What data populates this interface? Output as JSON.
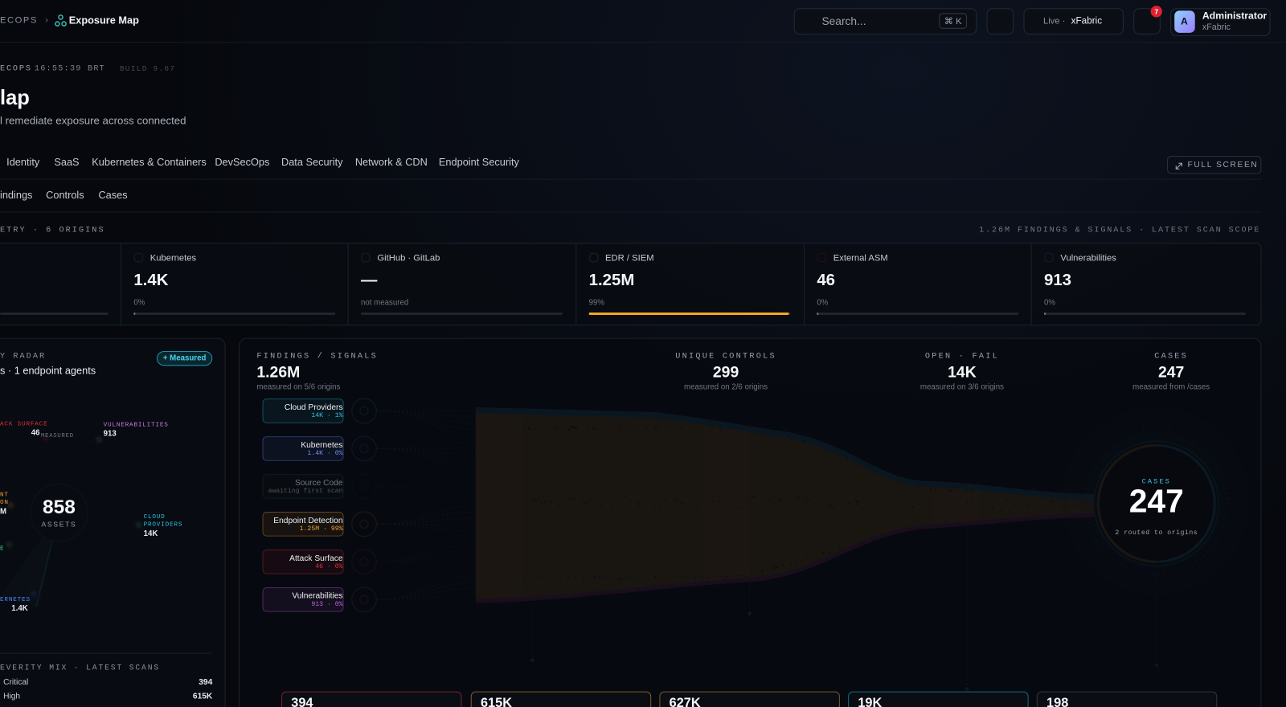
{
  "header": {
    "breadcrumb": "ECOPS",
    "page": "Exposure Map",
    "search": "Search...",
    "shortcut": "⌘ K",
    "live": "Live ·",
    "workspace": "xFabric",
    "notifications": "7",
    "avatar": "A",
    "user": "Administrator",
    "org": "xFabric"
  },
  "meta": {
    "org": "ECOPS",
    "time": "16:55:39 BRT",
    "build": "BUILD 9.67"
  },
  "title": "lap",
  "subtitle": "l remediate exposure across connected",
  "tabs": [
    "Identity",
    "SaaS",
    "Kubernetes & Containers",
    "DevSecOps",
    "Data Security",
    "Network & CDN",
    "Endpoint Security"
  ],
  "fullscreen": "FULL SCREEN",
  "subtabs": [
    "indings",
    "Controls",
    "Cases"
  ],
  "telemetry": {
    "label": "ETRY · 6 ORIGINS",
    "scope": "1.26M FINDINGS & SIGNALS · LATEST SCAN SCOPE",
    "cards": [
      {
        "name": "Kubernetes",
        "value": "1.4K",
        "note": "0%"
      },
      {
        "name": "GitHub · GitLab",
        "value": "—",
        "note": "not measured"
      },
      {
        "name": "EDR / SIEM",
        "value": "1.25M",
        "note": "99%"
      },
      {
        "name": "External ASM",
        "value": "46",
        "note": "0%"
      },
      {
        "name": "Vulnerabilities",
        "value": "913",
        "note": "0%"
      }
    ]
  },
  "radar": {
    "title": "Y RADAR",
    "badge": "+ Measured",
    "subtitle": "s · 1 endpoint agents",
    "center": "858",
    "center_label": "ASSETS",
    "measured": "MEASURED",
    "points": [
      {
        "label": "ACK SURFACE",
        "value": "46"
      },
      {
        "label": "VULNERABILITIES",
        "value": "913"
      },
      {
        "label": "NT ON",
        "value": "M"
      },
      {
        "label": "CLOUD PROVIDERS",
        "value": "14K"
      },
      {
        "label": "E"
      },
      {
        "label": "ERNETES",
        "value": "1.4K"
      }
    ]
  },
  "severity": {
    "title": "EVERITY MIX · LATEST SCANS",
    "rows": [
      [
        "Critical",
        "394"
      ],
      [
        "High",
        "615K"
      ]
    ]
  },
  "flow": {
    "stats": [
      {
        "label": "FINDINGS / SIGNALS",
        "value": "1.26M",
        "note": "measured on 5/6 origins"
      },
      {
        "label": "UNIQUE CONTROLS",
        "value": "299",
        "note": "measured on 2/6 origins"
      },
      {
        "label": "OPEN · FAIL",
        "value": "14K",
        "note": "measured on 3/6 origins"
      },
      {
        "label": "CASES",
        "value": "247",
        "note": "measured from /cases"
      }
    ],
    "sources": [
      {
        "name": "Cloud Providers",
        "detail": "14K · 1%"
      },
      {
        "name": "Kubernetes",
        "detail": "1.4K · 0%"
      },
      {
        "name": "Source Code",
        "detail": "awaiting first scan"
      },
      {
        "name": "Endpoint Detection",
        "detail": "1.25M · 99%"
      },
      {
        "name": "Attack Surface",
        "detail": "46 · 0%"
      },
      {
        "name": "Vulnerabilities",
        "detail": "913 · 0%"
      }
    ],
    "cases": {
      "label": "CASES",
      "value": "247",
      "note": "2 routed to origins"
    },
    "outcomes": [
      "394",
      "615K",
      "627K",
      "19K",
      "198"
    ]
  }
}
